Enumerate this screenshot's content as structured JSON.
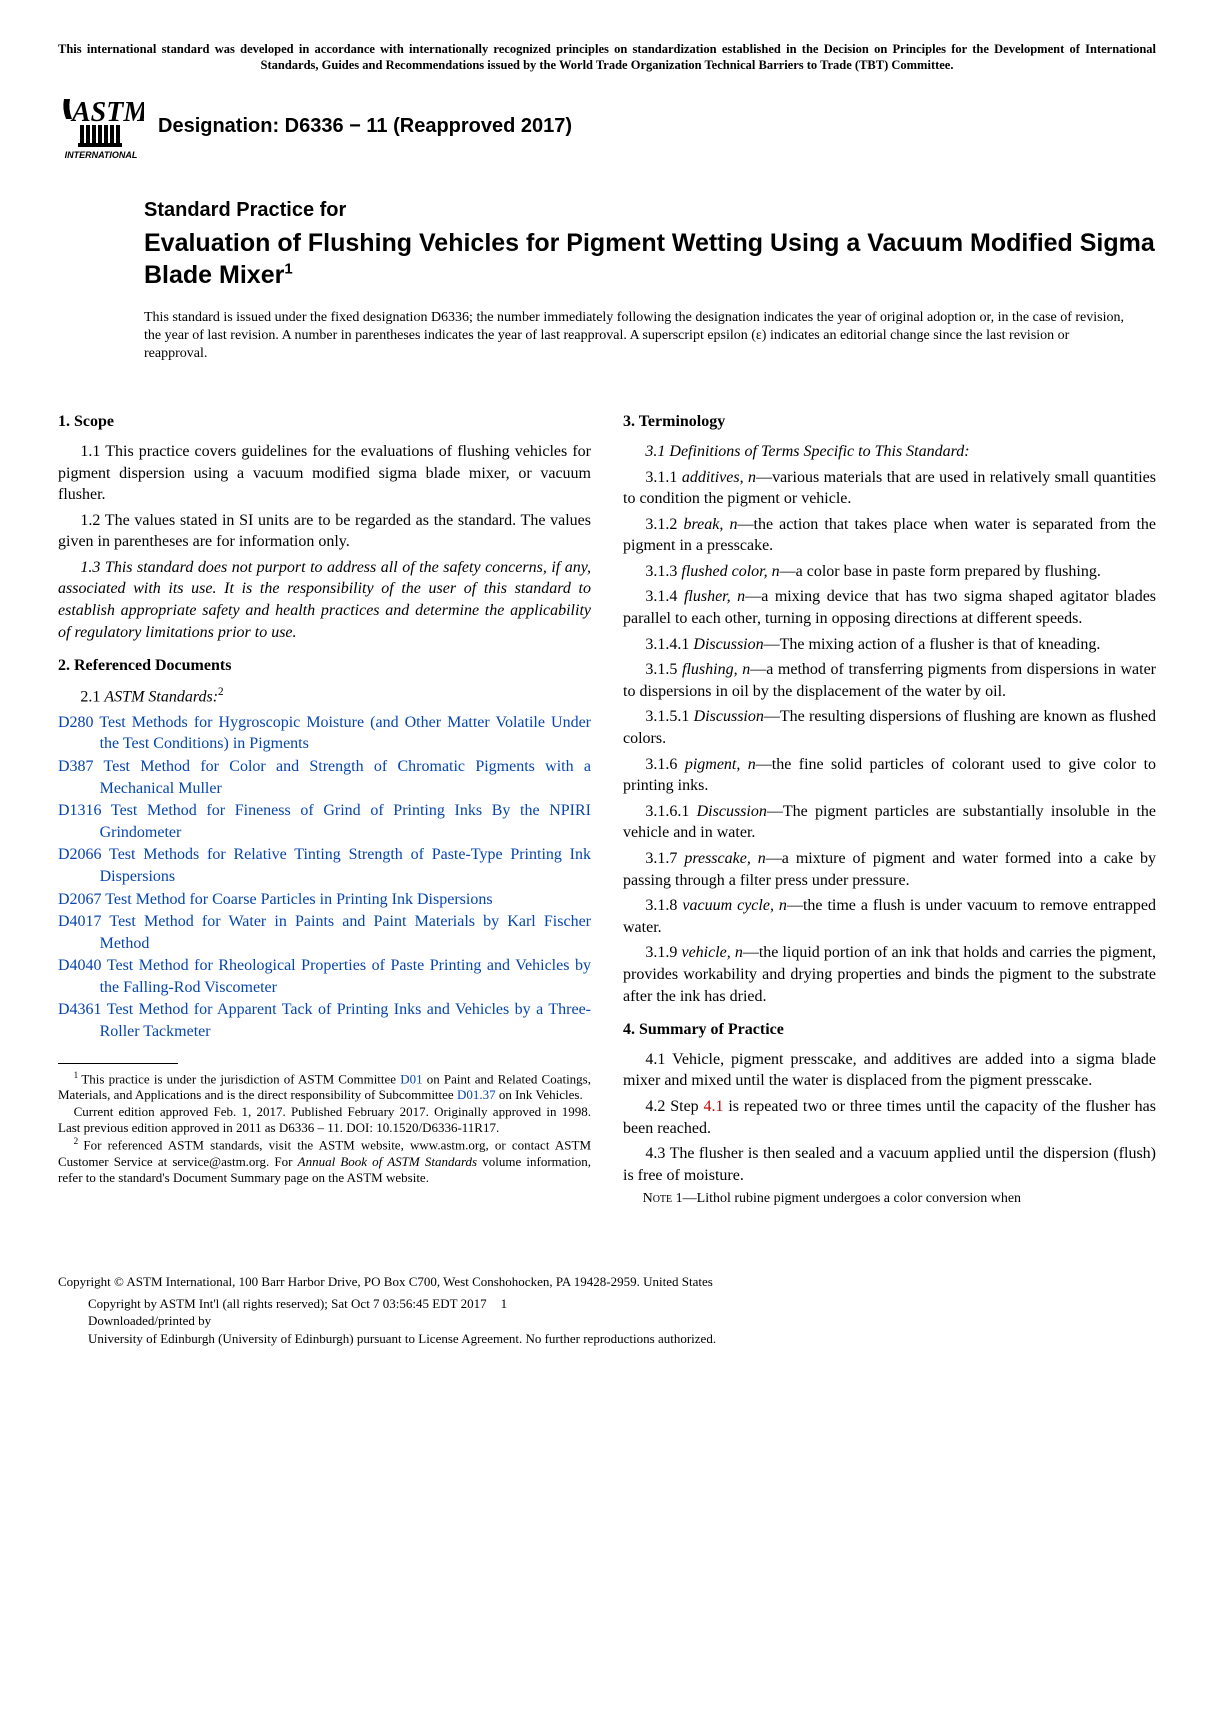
{
  "top_notice": "This international standard was developed in accordance with internationally recognized principles on standardization established in the Decision on Principles for the Development of International Standards, Guides and Recommendations issued by the World Trade Organization Technical Barriers to Trade (TBT) Committee.",
  "designation": "Designation: D6336 − 11 (Reapproved 2017)",
  "logo_text_international": "INTERNATIONAL",
  "pretitle": "Standard Practice for",
  "maintitle": "Evaluation of Flushing Vehicles for Pigment Wetting Using a Vacuum Modified Sigma Blade Mixer",
  "title_sup": "1",
  "issuance": "This standard is issued under the fixed designation D6336; the number immediately following the designation indicates the year of original adoption or, in the case of revision, the year of last revision. A number in parentheses indicates the year of last reapproval. A superscript epsilon (ε) indicates an editorial change since the last revision or reapproval.",
  "sections": {
    "s1_head": "1.  Scope",
    "s1_1": "1.1 This practice covers guidelines for the evaluations of flushing vehicles for pigment dispersion using a vacuum modified sigma blade mixer, or vacuum flusher.",
    "s1_2": "1.2 The values stated in SI units are to be regarded as the standard. The values given in parentheses are for information only.",
    "s1_3": "1.3 This standard does not purport to address all of the safety concerns, if any, associated with its use. It is the responsibility of the user of this standard to establish appropriate safety and health practices and determine the applicability of regulatory limitations prior to use.",
    "s2_head": "2.  Referenced Documents",
    "s2_1_label": "2.1 ",
    "s2_1_ital": "ASTM Standards:",
    "s2_1_sup": "2",
    "s3_head": "3.  Terminology",
    "s3_1": "3.1 Definitions of Terms Specific to This Standard:",
    "s3_1_1": "3.1.1 additives, n—various materials that are used in relatively small quantities to condition the pigment or vehicle.",
    "s3_1_2": "3.1.2 break, n—the action that takes place when water is separated from the pigment in a presscake.",
    "s3_1_3": "3.1.3 flushed color, n—a color base in paste form prepared by flushing.",
    "s3_1_4": "3.1.4 flusher, n—a mixing device that has two sigma shaped agitator blades parallel to each other, turning in opposing directions at different speeds.",
    "s3_1_4_1": "3.1.4.1 Discussion—The mixing action of a flusher is that of kneading.",
    "s3_1_5": "3.1.5 flushing, n—a method of transferring pigments from dispersions in water to dispersions in oil by the displacement of the water by oil.",
    "s3_1_5_1": "3.1.5.1 Discussion—The resulting dispersions of flushing are known as flushed colors.",
    "s3_1_6": "3.1.6 pigment, n—the fine solid particles of colorant used to give color to printing inks.",
    "s3_1_6_1": "3.1.6.1 Discussion—The pigment particles are substantially insoluble in the vehicle and in water.",
    "s3_1_7": "3.1.7 presscake, n—a mixture of pigment and water formed into a cake by passing through a filter press under pressure.",
    "s3_1_8": "3.1.8 vacuum cycle, n—the time a flush is under vacuum to remove entrapped water.",
    "s3_1_9": "3.1.9 vehicle, n—the liquid portion of an ink that holds and carries the pigment, provides workability and drying properties and binds the pigment to the substrate after the ink has dried.",
    "s4_head": "4.  Summary of Practice",
    "s4_1": "4.1 Vehicle, pigment presscake, and additives are added into a sigma blade mixer and mixed until the water is displaced from the pigment presscake.",
    "s4_2_a": "4.2 Step ",
    "s4_2_link": "4.1",
    "s4_2_b": " is repeated two or three times until the capacity of the flusher has been reached.",
    "s4_3": "4.3 The flusher is then sealed and a vacuum applied until the dispersion (flush) is free of moisture.",
    "note1_label": "Note 1—",
    "note1_text": "Lithol rubine pigment undergoes a color conversion when"
  },
  "refs": [
    {
      "code": "D280",
      "title": "Test Methods for Hygroscopic Moisture (and Other Matter Volatile Under the Test Conditions) in Pigments"
    },
    {
      "code": "D387",
      "title": "Test Method for Color and Strength of Chromatic Pigments with a Mechanical Muller"
    },
    {
      "code": "D1316",
      "title": "Test Method for Fineness of Grind of Printing Inks By the NPIRI Grindometer"
    },
    {
      "code": "D2066",
      "title": "Test Methods for Relative Tinting Strength of Paste-Type Printing Ink Dispersions"
    },
    {
      "code": "D2067",
      "title": "Test Method for Coarse Particles in Printing Ink Dispersions"
    },
    {
      "code": "D4017",
      "title": "Test Method for Water in Paints and Paint Materials by Karl Fischer Method"
    },
    {
      "code": "D4040",
      "title": "Test Method for Rheological Properties of Paste Printing and Vehicles by the Falling-Rod Viscometer"
    },
    {
      "code": "D4361",
      "title": "Test Method for Apparent Tack of Printing Inks and Vehicles by a Three-Roller Tackmeter"
    }
  ],
  "footnotes": {
    "f1_a": "This practice is under the jurisdiction of ASTM Committee ",
    "f1_link1": "D01",
    "f1_b": " on Paint and Related Coatings, Materials, and Applications and is the direct responsibility of Subcommittee ",
    "f1_link2": "D01.37",
    "f1_c": " on Ink Vehicles.",
    "f1_d": "Current edition approved Feb. 1, 2017. Published February 2017. Originally approved in 1998. Last previous edition approved in 2011 as D6336 – 11. DOI: 10.1520/D6336-11R17.",
    "f2": "For referenced ASTM standards, visit the ASTM website, www.astm.org, or contact ASTM Customer Service at service@astm.org. For Annual Book of ASTM Standards volume information, refer to the standard's Document Summary page on the ASTM website."
  },
  "copyright": "Copyright © ASTM International, 100 Barr Harbor Drive, PO Box C700, West Conshohocken, PA 19428-2959. United States",
  "footer": {
    "line1_a": "Copyright by ASTM Int'l (all rights reserved); Sat Oct  7 03:56:45 EDT 2017",
    "pagenum": "1",
    "line2": "Downloaded/printed by",
    "line3": "University of Edinburgh (University of Edinburgh) pursuant to License Agreement. No further reproductions authorized."
  },
  "colors": {
    "link": "#0645ad",
    "text": "#000000",
    "bg": "#ffffff"
  }
}
